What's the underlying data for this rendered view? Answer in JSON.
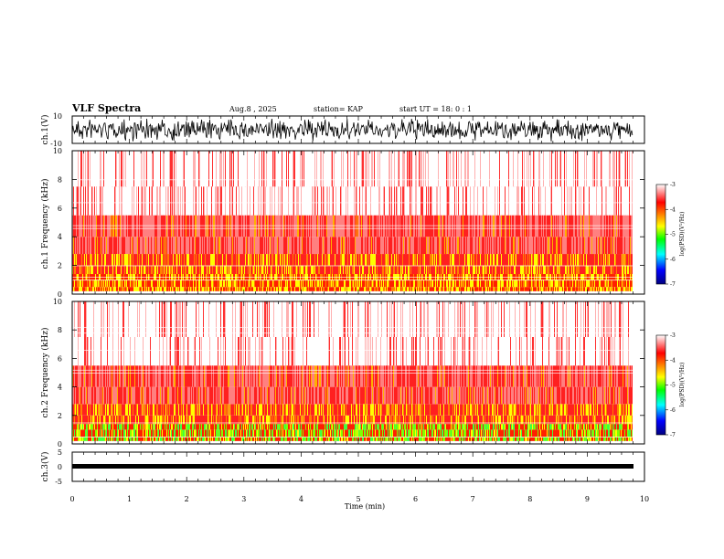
{
  "header": {
    "title": "VLF Spectra",
    "date": "Aug.8 , 2025",
    "station": "station= KAP",
    "start": "start UT = 18: 0 : 1"
  },
  "colorbar": {
    "label": "log(PSD)(V²/Hz)",
    "ticks": [
      "-3",
      "-4",
      "-5",
      "-6",
      "-7"
    ],
    "colors": [
      "#000080",
      "#0000ff",
      "#00ffff",
      "#00ff00",
      "#ffff00",
      "#ff8000",
      "#ff0000",
      "#ffffff"
    ]
  },
  "chart_data": [
    {
      "type": "line",
      "ylabel": "ch.1(V)",
      "ylim": [
        -10,
        10
      ],
      "yticks": [
        "10",
        "-10"
      ],
      "xlim": [
        0,
        10
      ],
      "x": [
        0,
        0.5,
        1.0,
        1.5,
        2.0,
        2.5,
        3.0,
        3.5,
        4.0,
        4.5,
        5.0,
        5.5,
        6.0,
        6.5,
        7.0,
        7.5,
        8.0,
        8.5,
        9.0,
        9.5,
        9.8
      ],
      "series": [
        {
          "values": [
            1,
            -2,
            2,
            -1,
            0,
            2,
            -3,
            1,
            -2,
            2,
            -1,
            0,
            1,
            -2,
            2,
            -1,
            1,
            -2,
            2,
            0,
            -1
          ]
        }
      ]
    },
    {
      "type": "heatmap",
      "ylabel": "ch.1 Frequency (kHz)",
      "ylim": [
        0,
        10
      ],
      "yticks": [
        "0",
        "2",
        "4",
        "6",
        "8",
        "10"
      ],
      "xlim": [
        0,
        10
      ],
      "colorscale_range": [
        -7,
        -3
      ],
      "description_bands": []
    },
    {
      "type": "heatmap",
      "ylabel": "ch.2 Frequency (kHz)",
      "ylim": [
        0,
        10
      ],
      "yticks": [
        "0",
        "2",
        "4",
        "6",
        "8",
        "10"
      ],
      "xlim": [
        0,
        10
      ],
      "colorscale_range": [
        -7,
        -3
      ]
    },
    {
      "type": "line",
      "ylabel": "ch.3(V)",
      "ylim": [
        -5,
        5
      ],
      "yticks": [
        "5",
        "0",
        "-5"
      ],
      "xlim": [
        0,
        10
      ],
      "xlabel": "Time (min)",
      "xticks": [
        "0",
        "1",
        "2",
        "3",
        "4",
        "5",
        "6",
        "7",
        "8",
        "9",
        "10"
      ],
      "series": [
        {
          "values": [
            -1,
            -1,
            -1,
            -1,
            -1,
            -1,
            -1,
            -1,
            -1,
            -1,
            -1,
            -1,
            -1,
            -1,
            -1,
            -1,
            -1,
            -1,
            -1,
            -1,
            -1
          ]
        }
      ]
    }
  ]
}
